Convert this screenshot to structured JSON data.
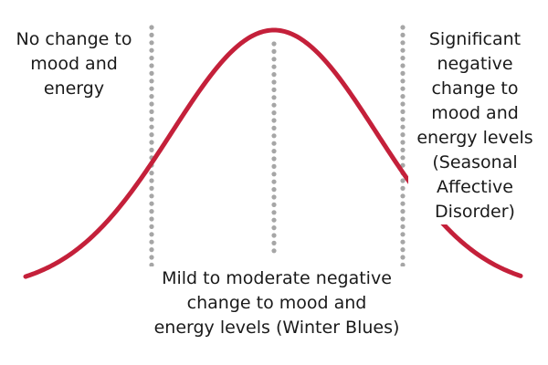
{
  "diagram": {
    "curve_color": "#c4203a",
    "divider_color": "#a6a6a6",
    "background": "#ffffff",
    "labels": {
      "left": [
        "No change to",
        "mood and",
        "energy"
      ],
      "right": [
        "Significant",
        "negative",
        "change to",
        "mood and",
        "energy levels",
        "(Seasonal",
        "Affective",
        "Disorder)"
      ],
      "center": [
        "Mild to moderate negative",
        "change to mood and",
        "energy levels (Winter Blues)"
      ]
    }
  }
}
